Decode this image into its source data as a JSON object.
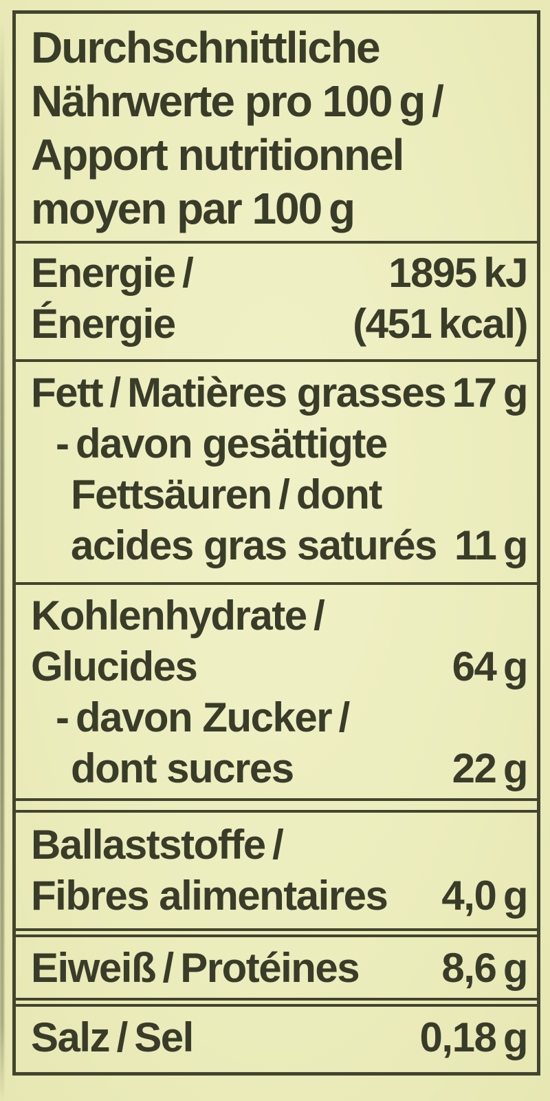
{
  "label": {
    "colors": {
      "background": "#ecedbd",
      "ink": "#3a3c2a",
      "rule": "#42442e"
    },
    "title_lines": [
      "Durchschnittliche",
      "Nährwerte pro 100 g /",
      "Apport nutritionnel",
      "moyen par 100 g"
    ],
    "rows": {
      "energy": {
        "de": "Energie /",
        "fr": "Énergie",
        "kj": "1895 kJ",
        "kcal": "(451 kcal)"
      },
      "fat": {
        "label": "Fett / Matières grasses",
        "value": "17 g",
        "sat_line1": "- davon gesättigte",
        "sat_line2": "Fettsäuren / dont",
        "sat_line3": "acides gras saturés",
        "sat_value": "11 g"
      },
      "carbs": {
        "de": "Kohlenhydrate /",
        "fr": "Glucides",
        "value": "64 g",
        "sugar_line1": "- davon Zucker /",
        "sugar_line2": "dont sucres",
        "sugar_value": "22 g"
      },
      "fiber": {
        "de": "Ballaststoffe /",
        "fr": "Fibres alimentaires",
        "value": "4,0 g"
      },
      "protein": {
        "label": "Eiweiß / Protéines",
        "value": "8,6 g"
      },
      "salt": {
        "label": "Salz / Sel",
        "value": "0,18 g"
      }
    }
  }
}
